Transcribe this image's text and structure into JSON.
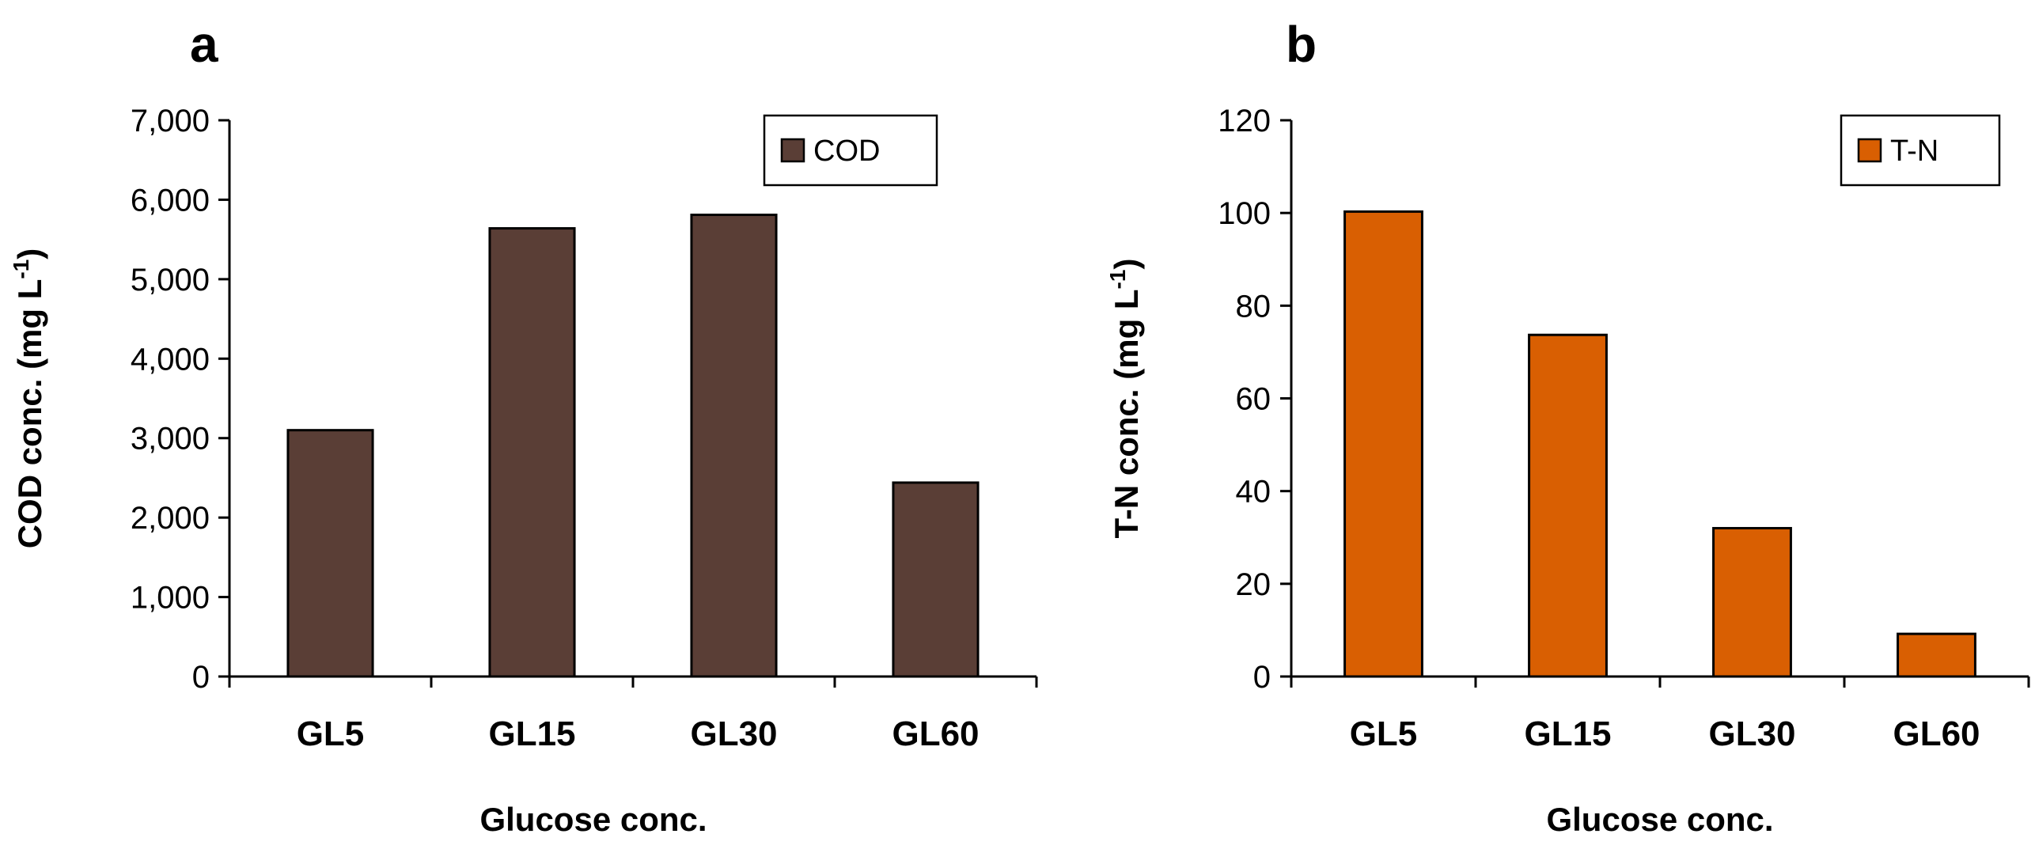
{
  "chart_data": [
    {
      "panel": "a",
      "type": "bar",
      "categories": [
        "GL5",
        "GL15",
        "GL30",
        "GL60"
      ],
      "series": [
        {
          "name": "COD",
          "values": [
            3100,
            5640,
            5810,
            2440
          ]
        }
      ],
      "xlabel": "Glucose conc.",
      "ylabel": "COD conc. (mg L",
      "ylabel_sup": "-1",
      "ylabel_close": ")",
      "ylim": [
        0,
        7000
      ],
      "yticks": [
        0,
        1000,
        2000,
        3000,
        4000,
        5000,
        6000,
        7000
      ],
      "ytick_labels": [
        "0",
        "1,000",
        "2,000",
        "3,000",
        "4,000",
        "5,000",
        "6,000",
        "7,000"
      ],
      "bar_color": "#5a3e36",
      "grid": false,
      "legend_position": "top-right"
    },
    {
      "panel": "b",
      "type": "bar",
      "categories": [
        "GL5",
        "GL15",
        "GL30",
        "GL60"
      ],
      "series": [
        {
          "name": "T-N",
          "values": [
            100.3,
            73.7,
            32.0,
            9.2
          ]
        }
      ],
      "xlabel": "Glucose conc.",
      "ylabel": "T-N conc. (mg L",
      "ylabel_sup": "-1",
      "ylabel_close": ")",
      "ylim": [
        0,
        120
      ],
      "yticks": [
        0,
        20,
        40,
        60,
        80,
        100,
        120
      ],
      "ytick_labels": [
        "0",
        "20",
        "40",
        "60",
        "80",
        "100",
        "120"
      ],
      "bar_color": "#d95f02",
      "grid": false,
      "legend_position": "top-right"
    }
  ]
}
